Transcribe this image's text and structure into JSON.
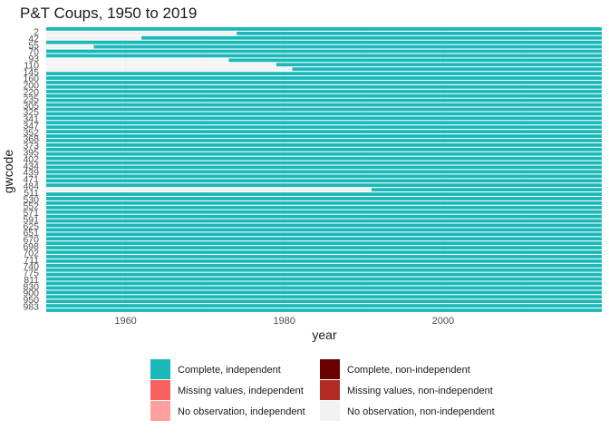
{
  "chart_data": {
    "type": "heatmap",
    "title": "P&T Coups, 1950 to 2019",
    "xlabel": "year",
    "ylabel": "gwcode",
    "xlim": [
      1950,
      2019
    ],
    "x_ticks": [
      1960,
      1980,
      2000
    ],
    "y_tick_labels": [
      "2",
      "42",
      "55",
      "70",
      "93",
      "110",
      "145",
      "160",
      "200",
      "220",
      "235",
      "305",
      "325",
      "341",
      "347",
      "352",
      "368",
      "373",
      "395",
      "402",
      "434",
      "439",
      "471",
      "484",
      "511",
      "530",
      "552",
      "571",
      "591",
      "625",
      "651",
      "670",
      "698",
      "702",
      "711",
      "740",
      "775",
      "811",
      "830",
      "900",
      "950",
      "983"
    ],
    "n_rows": 64,
    "legend": [
      {
        "label": "Complete, independent",
        "color": "#1ab8b8"
      },
      {
        "label": "Missing values, independent",
        "color": "#f8615e"
      },
      {
        "label": "No observation, independent",
        "color": "#ffa09c"
      },
      {
        "label": "Complete, non-independent",
        "color": "#6b0000"
      },
      {
        "label": "Missing values, non-independent",
        "color": "#b22a24"
      },
      {
        "label": "No observation, non-independent",
        "color": "#f2f2f2"
      }
    ],
    "legend_position": "bottom",
    "independence_start_year": [
      1950,
      1974,
      1962,
      1950,
      1956,
      1950,
      1950,
      1973,
      1979,
      1981,
      1950,
      1950,
      1950,
      1950,
      1950,
      1950,
      1950,
      1950,
      1950,
      1950,
      1950,
      1950,
      1950,
      1950,
      1950,
      1950,
      1950,
      1950,
      1950,
      1950,
      1950,
      1950,
      1950,
      1950,
      1950,
      1950,
      1991,
      1950,
      1950,
      1950,
      1950,
      1950,
      1950,
      1950,
      1950,
      1950,
      1950,
      1950,
      1950,
      1950,
      1950,
      1950,
      1950,
      1950,
      1950,
      1950,
      1950,
      1950,
      1950,
      1950,
      1950,
      1950,
      1950,
      1950
    ]
  }
}
